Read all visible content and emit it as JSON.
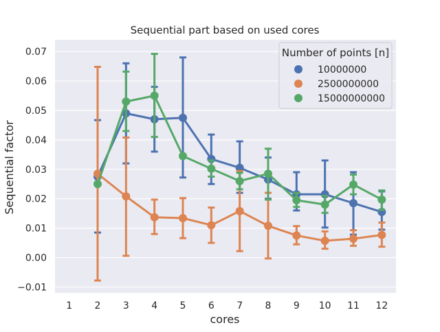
{
  "chart_data": {
    "type": "line",
    "title": "Sequential part based on used cores",
    "xlabel": "cores",
    "ylabel": "Sequential factor",
    "categories": [
      "1",
      "2",
      "3",
      "4",
      "5",
      "6",
      "7",
      "8",
      "9",
      "10",
      "11",
      "12"
    ],
    "ylim": [
      -0.012,
      0.074
    ],
    "yticks": [
      -0.01,
      0.0,
      0.01,
      0.02,
      0.03,
      0.04,
      0.05,
      0.06,
      0.07
    ],
    "ytick_labels": [
      "−0.01",
      "0.00",
      "0.01",
      "0.02",
      "0.03",
      "0.04",
      "0.05",
      "0.06",
      "0.07"
    ],
    "grid": true,
    "legend": {
      "title": "Number of points [n]",
      "placement": "top-right"
    },
    "series": [
      {
        "name": "10000000",
        "color": "#4c72b0",
        "values": [
          null,
          0.0275,
          0.049,
          0.047,
          0.0475,
          0.0335,
          0.0305,
          0.0265,
          0.0215,
          0.0215,
          0.0185,
          0.0155
        ],
        "err_low": [
          null,
          0.0085,
          0.032,
          0.036,
          0.0272,
          0.025,
          0.022,
          0.02,
          0.016,
          0.0102,
          0.0078,
          0.0095
        ],
        "err_high": [
          null,
          0.0467,
          0.066,
          0.058,
          0.068,
          0.0418,
          0.0395,
          0.034,
          0.029,
          0.033,
          0.029,
          0.0225
        ]
      },
      {
        "name": "2500000000",
        "color": "#dd8452",
        "values": [
          null,
          0.0285,
          0.0208,
          0.0137,
          0.0134,
          0.011,
          0.0158,
          0.0108,
          0.0075,
          0.0057,
          0.0064,
          0.0077
        ],
        "err_low": [
          null,
          -0.0078,
          0.0006,
          0.008,
          0.0066,
          0.005,
          0.0022,
          -0.0003,
          0.0045,
          0.003,
          0.004,
          0.0037
        ],
        "err_high": [
          null,
          0.0648,
          0.0408,
          0.0197,
          0.0202,
          0.017,
          0.0294,
          0.022,
          0.0107,
          0.0089,
          0.0093,
          0.0119
        ]
      },
      {
        "name": "15000000000",
        "color": "#55a868",
        "values": [
          null,
          0.025,
          0.053,
          0.055,
          0.0345,
          0.0302,
          0.026,
          0.0285,
          0.0195,
          0.018,
          0.0248,
          0.0197
        ],
        "err_low": [
          null,
          0.025,
          0.043,
          0.041,
          0.0345,
          0.0275,
          0.0232,
          0.0197,
          0.0172,
          0.0152,
          0.0215,
          0.0162
        ],
        "err_high": [
          null,
          0.025,
          0.0632,
          0.0692,
          0.0345,
          0.033,
          0.0288,
          0.037,
          0.022,
          0.021,
          0.0282,
          0.0228
        ]
      }
    ]
  }
}
